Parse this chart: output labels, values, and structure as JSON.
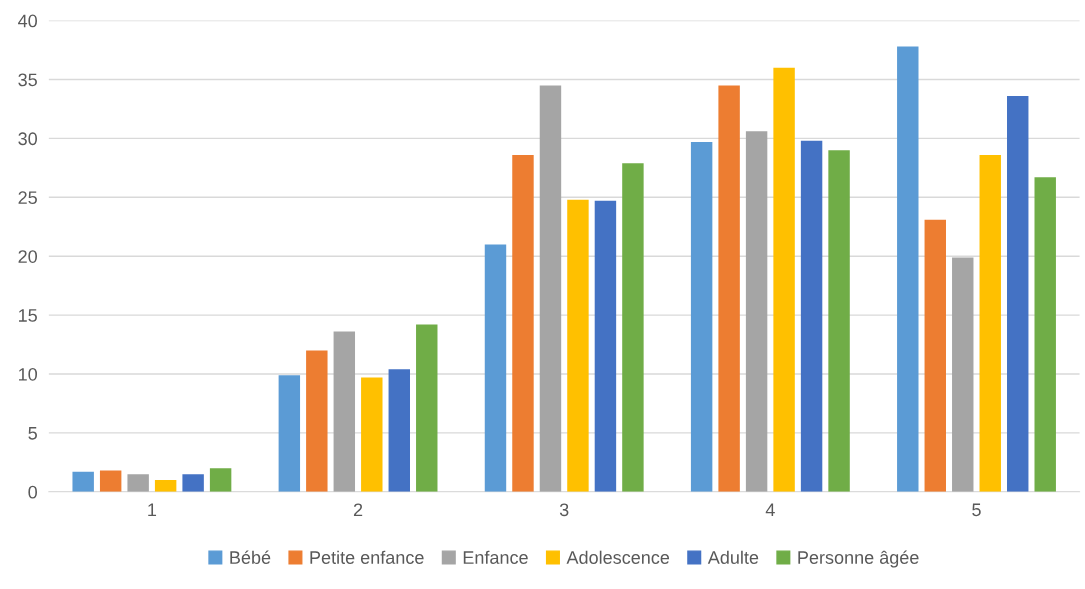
{
  "chart_data": {
    "type": "bar",
    "categories": [
      "1",
      "2",
      "3",
      "4",
      "5"
    ],
    "series": [
      {
        "name": "Bébé",
        "color": "#5b9bd5",
        "values": [
          1.7,
          9.9,
          21.0,
          29.7,
          37.8
        ]
      },
      {
        "name": "Petite enfance",
        "color": "#ed7d31",
        "values": [
          1.8,
          12.0,
          28.6,
          34.5,
          23.1
        ]
      },
      {
        "name": "Enfance",
        "color": "#a5a5a5",
        "values": [
          1.5,
          13.6,
          34.5,
          30.6,
          19.9
        ]
      },
      {
        "name": "Adolescence",
        "color": "#ffc000",
        "values": [
          1.0,
          9.7,
          24.8,
          36.0,
          28.6
        ]
      },
      {
        "name": "Adulte",
        "color": "#4472c4",
        "values": [
          1.5,
          10.4,
          24.7,
          29.8,
          33.6
        ]
      },
      {
        "name": "Personne âgée",
        "color": "#70ad47",
        "values": [
          2.0,
          14.2,
          27.9,
          29.0,
          26.7
        ]
      }
    ],
    "ylim": [
      0,
      40
    ],
    "yticks": [
      0,
      5,
      10,
      15,
      20,
      25,
      30,
      35,
      40
    ],
    "grid": "y",
    "legend": "bottom"
  }
}
